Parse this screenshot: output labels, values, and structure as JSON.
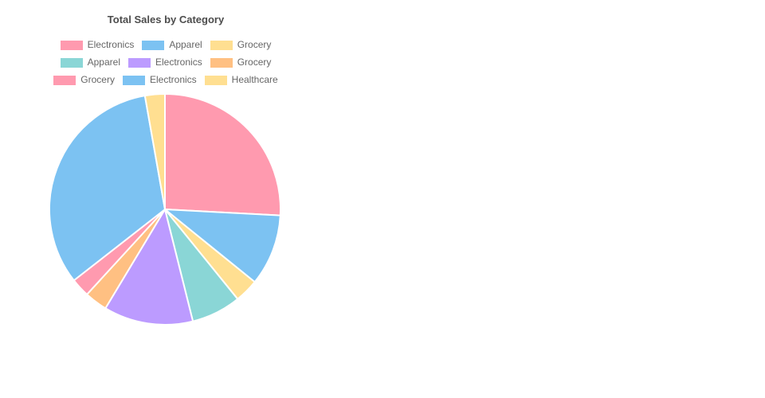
{
  "title": "Total Sales by Category",
  "chart_data": {
    "type": "pie",
    "title": "Total Sales by Category",
    "legend_position": "top",
    "grid": false,
    "slices": [
      {
        "label": "Electronics",
        "value": 930,
        "color": "#FF9AAF"
      },
      {
        "label": "Apparel",
        "value": 360,
        "color": "#7CC2F2"
      },
      {
        "label": "Grocery",
        "value": 120,
        "color": "#FFDF91"
      },
      {
        "label": "Apparel",
        "value": 250,
        "color": "#8AD6D6"
      },
      {
        "label": "Electronics",
        "value": 450,
        "color": "#BC9BFF"
      },
      {
        "label": "Grocery",
        "value": 115,
        "color": "#FFC082"
      },
      {
        "label": "Grocery",
        "value": 95,
        "color": "#FF9AAF"
      },
      {
        "label": "Electronics",
        "value": 1180,
        "color": "#7CC2F2"
      },
      {
        "label": "Healthcare",
        "value": 100,
        "color": "#FFDF91"
      }
    ]
  }
}
